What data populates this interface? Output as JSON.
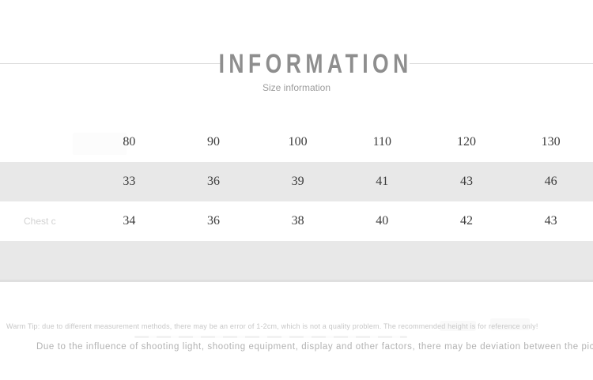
{
  "header": {
    "title": "INFORMATION",
    "subtitle": "Size information"
  },
  "size_table": {
    "columns": [
      "",
      "80",
      "90",
      "100",
      "110",
      "120",
      "130"
    ],
    "rows": [
      {
        "label": "",
        "values": [
          "33",
          "36",
          "39",
          "41",
          "43",
          "46"
        ]
      },
      {
        "label": "Chest c",
        "values": [
          "34",
          "36",
          "38",
          "40",
          "42",
          "43"
        ]
      },
      {
        "label": "",
        "values": [
          "",
          "",
          "",
          "",
          "",
          ""
        ]
      }
    ],
    "stripe_color": "#e8e8e8",
    "text_color": "#3c3c3c"
  },
  "footer": {
    "warm_tip": "Warm Tip: due to different measurement methods, there may be an error of 1-2cm, which is not a quality problem. The recommended height is for reference only!",
    "disclaimer": "Due to the influence of shooting light, shooting equipment, display and other factors, there may be deviation between the picture and the real object!"
  },
  "colors": {
    "title": "#8e8e8e",
    "subtitle": "#9d9d9d",
    "divider": "#dcdcdc"
  }
}
